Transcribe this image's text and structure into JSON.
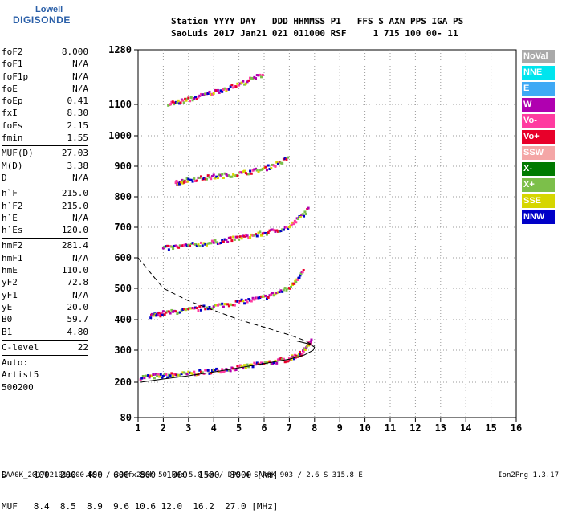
{
  "logo": {
    "line1": "Lowell",
    "line2": "DIGISONDE"
  },
  "header": {
    "line1": "Station YYYY DAY   DDD HHMMSS P1   FFS S AXN PPS IGA PS",
    "line2": "SaoLuis 2017 Jan21 021 011000 RSF     1 715 100 00- 11"
  },
  "params": [
    {
      "k": "foF2",
      "v": "8.000"
    },
    {
      "k": "foF1",
      "v": "N/A"
    },
    {
      "k": "foF1p",
      "v": "N/A"
    },
    {
      "k": "foE",
      "v": "N/A"
    },
    {
      "k": "foEp",
      "v": "0.41"
    },
    {
      "k": "fxI",
      "v": "8.30"
    },
    {
      "k": "foEs",
      "v": "2.15"
    },
    {
      "k": "fmin",
      "v": "1.55",
      "sep": true
    },
    {
      "k": "MUF(D)",
      "v": "27.03"
    },
    {
      "k": "M(D)",
      "v": "3.38"
    },
    {
      "k": "D",
      "v": "N/A",
      "sep": true
    },
    {
      "k": "h`F",
      "v": "215.0"
    },
    {
      "k": "h`F2",
      "v": "215.0"
    },
    {
      "k": "h`E",
      "v": "N/A"
    },
    {
      "k": "h`Es",
      "v": "120.0",
      "sep": true
    },
    {
      "k": "hmF2",
      "v": "281.4"
    },
    {
      "k": "hmF1",
      "v": "N/A"
    },
    {
      "k": "hmE",
      "v": "110.0"
    },
    {
      "k": "yF2",
      "v": "72.8"
    },
    {
      "k": "yF1",
      "v": "N/A"
    },
    {
      "k": "yE",
      "v": "20.0"
    },
    {
      "k": "B0",
      "v": "59.7"
    },
    {
      "k": "B1",
      "v": "4.80",
      "sep": true
    },
    {
      "k": "C-level",
      "v": "22",
      "sep": true
    },
    {
      "k": "Auto:",
      "v": ""
    },
    {
      "k": "Artist5",
      "v": ""
    },
    {
      "k": "500200",
      "v": ""
    }
  ],
  "legend": [
    {
      "label": "NoVal",
      "color": "#a9a9a9"
    },
    {
      "label": "NNE",
      "color": "#00e5ee"
    },
    {
      "label": "E",
      "color": "#3fa9f5"
    },
    {
      "label": "W",
      "color": "#b000b0"
    },
    {
      "label": "Vo-",
      "color": "#ff3ba0"
    },
    {
      "label": "Vo+",
      "color": "#e8002a"
    },
    {
      "label": "SSW",
      "color": "#f4a6a6"
    },
    {
      "label": "X-",
      "color": "#007a00"
    },
    {
      "label": "X+",
      "color": "#7cbf4a"
    },
    {
      "label": "SSE",
      "color": "#d6d600"
    },
    {
      "label": "NNW",
      "color": "#0000c8"
    }
  ],
  "bottom_table": {
    "line1": "D     100  200  400  600  800  1000  1500  3000 [km]",
    "line2": "MUF   8.4  8.5  8.9  9.6 10.6 12.0  16.2  27.0 [MHz]"
  },
  "footer": "SAA0K_2017021011000.RSF / 300fx256h 50 kHz 5.0 km / DPS-4 SAA0K 903 / 2.6 S 315.8 E",
  "version": "Ion2Png 1.3.17",
  "chart_data": {
    "type": "scatter",
    "title": "",
    "xlabel": "",
    "ylabel": "",
    "xlim": [
      1,
      16
    ],
    "ylim": [
      80,
      1280
    ],
    "x_ticks": [
      1,
      2,
      3,
      4,
      5,
      6,
      7,
      8,
      9,
      10,
      11,
      12,
      13,
      14,
      15,
      16
    ],
    "y_ticks": [
      80,
      200,
      300,
      400,
      500,
      600,
      700,
      800,
      900,
      1000,
      1100,
      1280
    ],
    "grid": "dotted",
    "traces": [
      {
        "name": "",
        "color": "#cc0000",
        "x": [
          1.1,
          2,
          3,
          4,
          5,
          6,
          7,
          7.5,
          7.9
        ],
        "y": [
          215,
          220,
          226,
          235,
          245,
          258,
          272,
          290,
          330
        ]
      },
      {
        "name": "",
        "color": "#cc0000",
        "x": [
          1.5,
          2,
          3,
          4,
          5,
          6,
          7,
          7.6
        ],
        "y": [
          410,
          420,
          430,
          442,
          455,
          470,
          500,
          560
        ]
      },
      {
        "name": "",
        "color": "#cc0000",
        "x": [
          2,
          3,
          4,
          5,
          6,
          7,
          7.8
        ],
        "y": [
          630,
          640,
          650,
          665,
          680,
          700,
          760
        ]
      },
      {
        "name": "",
        "color": "#cc0000",
        "x": [
          2.5,
          3,
          4,
          5,
          6,
          7
        ],
        "y": [
          845,
          855,
          865,
          875,
          890,
          925
        ]
      },
      {
        "name": "",
        "color": "#cc0000",
        "x": [
          2.2,
          3,
          4,
          5,
          6
        ],
        "y": [
          1100,
          1115,
          1140,
          1165,
          1200
        ]
      }
    ],
    "profile_solid": {
      "x": [
        1.1,
        2,
        3,
        4,
        5,
        6,
        7,
        7.6,
        7.95,
        8.0,
        7.8,
        7.3
      ],
      "y": [
        200,
        210,
        220,
        232,
        245,
        258,
        272,
        285,
        300,
        310,
        320,
        330
      ]
    },
    "profile_dashed": {
      "x": [
        1,
        1.5,
        2,
        3,
        4,
        5,
        6,
        7,
        7.5,
        8
      ],
      "y": [
        600,
        550,
        500,
        460,
        430,
        400,
        375,
        350,
        335,
        315
      ]
    }
  }
}
